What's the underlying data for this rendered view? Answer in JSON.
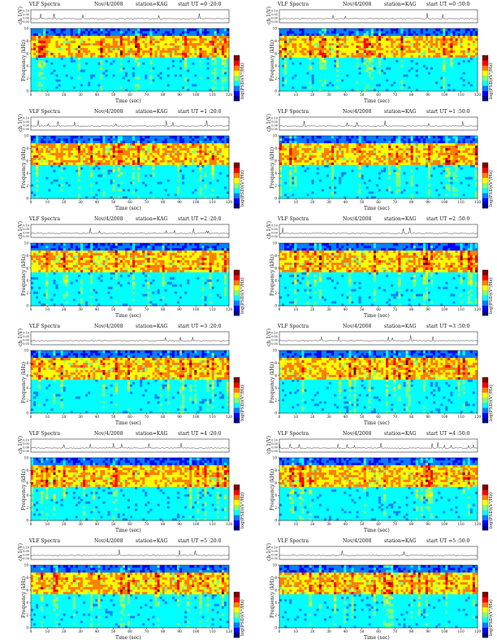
{
  "chart_data": [
    {
      "type": "heatmap",
      "title_left": "VLF Spectra",
      "date": "Nov/4/2008",
      "station": "station=KAG",
      "start": "start UT =0 :20:0",
      "ylabel_top": "ch 1(V)",
      "ylabel_main": "Frequency (kHz)",
      "xlabel": "Time (sec)",
      "colorbar_label": "log(PSD)(V²/Hz)",
      "xlim": [
        0,
        120
      ],
      "ylim": [
        0,
        10
      ],
      "xticks": [
        0,
        10,
        20,
        30,
        40,
        50,
        60,
        70,
        80,
        90,
        100,
        110,
        120
      ],
      "yticks": [
        0,
        2,
        4,
        6,
        8,
        10
      ],
      "top_yticks": [
        "0.10",
        "0.05",
        "0.00",
        "-0.05"
      ]
    },
    {
      "type": "heatmap",
      "title_left": "VLF Spectra",
      "date": "Nov/4/2008",
      "station": "station=KAG",
      "start": "start UT =0 :50:0",
      "ylabel_top": "ch 1(V)",
      "ylabel_main": "Frequency (kHz)",
      "xlabel": "Time (sec)",
      "colorbar_label": "log(PSD)(V²/Hz)",
      "xlim": [
        0,
        120
      ],
      "ylim": [
        0,
        10
      ],
      "xticks": [
        0,
        10,
        20,
        30,
        40,
        50,
        60,
        70,
        80,
        90,
        100,
        110,
        120
      ],
      "yticks": [
        0,
        2,
        4,
        6,
        8,
        10
      ],
      "top_yticks": [
        "0.10",
        "0.05",
        "0.00",
        "-0.05"
      ]
    },
    {
      "type": "heatmap",
      "title_left": "VLF Spectra",
      "date": "Nov/4/2008",
      "station": "station=KAG",
      "start": "start UT =1 :20:0",
      "ylabel_top": "ch 1(V)",
      "ylabel_main": "Frequency (kHz)",
      "xlabel": "Time (sec)",
      "colorbar_label": "log(PSD)(V²/Hz)",
      "xlim": [
        0,
        120
      ],
      "ylim": [
        0,
        10
      ],
      "xticks": [
        0,
        10,
        20,
        30,
        40,
        50,
        60,
        70,
        80,
        90,
        100,
        110,
        120
      ],
      "yticks": [
        0,
        2,
        4,
        6,
        8,
        10
      ],
      "top_yticks": [
        "0.10",
        "0.05",
        "0.00",
        "-0.05"
      ]
    },
    {
      "type": "heatmap",
      "title_left": "VLF Spectra",
      "date": "Nov/4/2008",
      "station": "station=KAG",
      "start": "start UT =1 :50:0",
      "ylabel_top": "ch 1(V)",
      "ylabel_main": "Frequency (kHz)",
      "xlabel": "Time (sec)",
      "colorbar_label": "log(PSD)(V²/Hz)",
      "xlim": [
        0,
        120
      ],
      "ylim": [
        0,
        10
      ],
      "xticks": [
        0,
        10,
        20,
        30,
        40,
        50,
        60,
        70,
        80,
        90,
        100,
        110,
        120
      ],
      "yticks": [
        0,
        2,
        4,
        6,
        8,
        10
      ],
      "top_yticks": [
        "0.10",
        "0.05",
        "0.00",
        "-0.05"
      ]
    },
    {
      "type": "heatmap",
      "title_left": "VLF Spectra",
      "date": "Nov/4/2008",
      "station": "station=KAG",
      "start": "start UT =2 :20:0",
      "ylabel_top": "ch 1(V)",
      "ylabel_main": "Frequency (kHz)",
      "xlabel": "Time (sec)",
      "colorbar_label": "log(PSD)(V²/Hz)",
      "xlim": [
        0,
        120
      ],
      "ylim": [
        0,
        10
      ],
      "xticks": [
        0,
        10,
        20,
        30,
        40,
        50,
        60,
        70,
        80,
        90,
        100,
        110,
        120
      ],
      "yticks": [
        0,
        2,
        4,
        6,
        8,
        10
      ],
      "top_yticks": [
        "0.10",
        "0.05",
        "0.00",
        "-0.05"
      ]
    },
    {
      "type": "heatmap",
      "title_left": "VLF Spectra",
      "date": "Nov/4/2008",
      "station": "station=KAG",
      "start": "start UT =2 :50:0",
      "ylabel_top": "ch 1(V)",
      "ylabel_main": "Frequency (kHz)",
      "xlabel": "Time (sec)",
      "colorbar_label": "log(PSD)(V²/Hz)",
      "xlim": [
        0,
        120
      ],
      "ylim": [
        0,
        10
      ],
      "xticks": [
        0,
        10,
        20,
        30,
        40,
        50,
        60,
        70,
        80,
        90,
        100,
        110,
        120
      ],
      "yticks": [
        0,
        2,
        4,
        6,
        8,
        10
      ],
      "top_yticks": [
        "0.10",
        "0.05",
        "0.00",
        "-0.05"
      ]
    },
    {
      "type": "heatmap",
      "title_left": "VLF Spectra",
      "date": "Nov/4/2008",
      "station": "station=KAG",
      "start": "start UT =3 :20:0",
      "ylabel_top": "ch 1(V)",
      "ylabel_main": "Frequency (kHz)",
      "xlabel": "Time (sec)",
      "colorbar_label": "log(PSD)(V²/Hz)",
      "xlim": [
        0,
        120
      ],
      "ylim": [
        0,
        10
      ],
      "xticks": [
        0,
        10,
        20,
        30,
        40,
        50,
        60,
        70,
        80,
        90,
        100,
        110,
        120
      ],
      "yticks": [
        0,
        2,
        4,
        6,
        8,
        10
      ],
      "top_yticks": [
        "0.10",
        "0.05",
        "0.00",
        "-0.05"
      ]
    },
    {
      "type": "heatmap",
      "title_left": "VLF Spectra",
      "date": "Nov/4/2008",
      "station": "station=KAG",
      "start": "start UT =3 :50:0",
      "ylabel_top": "ch 1(V)",
      "ylabel_main": "Frequency (kHz)",
      "xlabel": "Time (sec)",
      "colorbar_label": "log(PSD)(V²/Hz)",
      "xlim": [
        0,
        120
      ],
      "ylim": [
        0,
        10
      ],
      "xticks": [
        0,
        10,
        20,
        30,
        40,
        50,
        60,
        70,
        80,
        90,
        100,
        110,
        120
      ],
      "yticks": [
        0,
        2,
        4,
        6,
        8,
        10
      ],
      "top_yticks": [
        "0.10",
        "0.05",
        "0.00",
        "-0.05"
      ]
    },
    {
      "type": "heatmap",
      "title_left": "VLF Spectra",
      "date": "Nov/4/2008",
      "station": "station=KAG",
      "start": "start UT =4 :20:0",
      "ylabel_top": "ch 1(V)",
      "ylabel_main": "Frequency (kHz)",
      "xlabel": "Time (sec)",
      "colorbar_label": "log(PSD)(V²/Hz)",
      "xlim": [
        0,
        120
      ],
      "ylim": [
        0,
        10
      ],
      "xticks": [
        0,
        10,
        20,
        30,
        40,
        50,
        60,
        70,
        80,
        90,
        100,
        110,
        120
      ],
      "yticks": [
        0,
        2,
        4,
        6,
        8,
        10
      ],
      "top_yticks": [
        "0.10",
        "0.05",
        "0.00",
        "-0.05"
      ]
    },
    {
      "type": "heatmap",
      "title_left": "VLF Spectra",
      "date": "Nov/4/2008",
      "station": "station=KAG",
      "start": "start UT =4 :50:0",
      "ylabel_top": "ch 1(V)",
      "ylabel_main": "Frequency (kHz)",
      "xlabel": "Time (sec)",
      "colorbar_label": "log(PSD)(V²/Hz)",
      "xlim": [
        0,
        120
      ],
      "ylim": [
        0,
        10
      ],
      "xticks": [
        0,
        10,
        20,
        30,
        40,
        50,
        60,
        70,
        80,
        90,
        100,
        110,
        120
      ],
      "yticks": [
        0,
        2,
        4,
        6,
        8,
        10
      ],
      "top_yticks": [
        "0.10",
        "0.05",
        "0.00",
        "-0.05"
      ]
    },
    {
      "type": "heatmap",
      "title_left": "VLF Spectra",
      "date": "Nov/4/2008",
      "station": "station=KAG",
      "start": "start UT =5 :20:0",
      "ylabel_top": "ch 1(V)",
      "ylabel_main": "Frequency (kHz)",
      "xlabel": "Time (sec)",
      "colorbar_label": "log(PSD)(V²/Hz)",
      "xlim": [
        0,
        120
      ],
      "ylim": [
        0,
        10
      ],
      "xticks": [
        0,
        10,
        20,
        30,
        40,
        50,
        60,
        70,
        80,
        90,
        100,
        110,
        120
      ],
      "yticks": [
        0,
        2,
        4,
        6,
        8,
        10
      ],
      "top_yticks": [
        "0.10",
        "0.05",
        "0.00",
        "-0.05"
      ]
    },
    {
      "type": "heatmap",
      "title_left": "VLF Spectra",
      "date": "Nov/4/2008",
      "station": "station=KAG",
      "start": "start UT =5 :50:0",
      "ylabel_top": "ch 1(V)",
      "ylabel_main": "Frequency (kHz)",
      "xlabel": "Time (sec)",
      "colorbar_label": "log(PSD)(V²/Hz)",
      "xlim": [
        0,
        120
      ],
      "ylim": [
        0,
        10
      ],
      "xticks": [
        0,
        10,
        20,
        30,
        40,
        50,
        60,
        70,
        80,
        90,
        100,
        110,
        120
      ],
      "yticks": [
        0,
        2,
        4,
        6,
        8,
        10
      ],
      "top_yticks": [
        "0.10",
        "0.05",
        "0.00",
        "-0.05"
      ]
    }
  ],
  "colormap": [
    "#00007f",
    "#0000ff",
    "#007fff",
    "#00ffff",
    "#7fff7f",
    "#ffff00",
    "#ff7f00",
    "#ff0000",
    "#7f0000"
  ]
}
